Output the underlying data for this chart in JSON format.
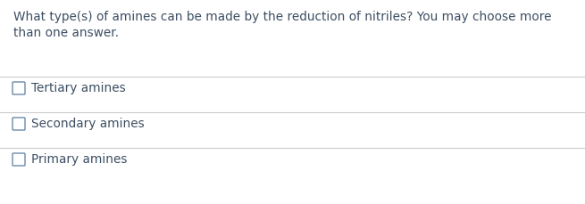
{
  "question_line1": "What type(s) of amines can be made by the reduction of nitriles? You may choose more",
  "question_line2": "than one answer.",
  "options": [
    "Tertiary amines",
    "Secondary amines",
    "Primary amines"
  ],
  "bg_color": "#ffffff",
  "question_color": "#3d4f63",
  "line_color": "#cccccc",
  "checkbox_color": "#6a8aaa",
  "font_size_question": 9.8,
  "font_size_options": 9.8,
  "fig_width": 6.55,
  "fig_height": 2.3,
  "dpi": 100
}
